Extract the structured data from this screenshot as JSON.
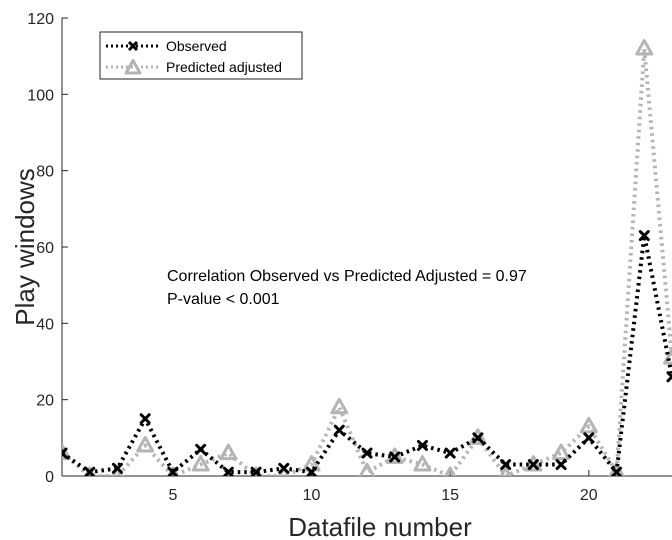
{
  "chart_data": {
    "type": "line",
    "title": "",
    "xlabel": "Datafile number",
    "ylabel": "Play windows",
    "xlim": [
      1,
      23
    ],
    "ylim": [
      0,
      120
    ],
    "x_ticks": [
      5,
      10,
      15,
      20
    ],
    "y_ticks": [
      0,
      20,
      40,
      60,
      80,
      100,
      120
    ],
    "grid": false,
    "legend_position": "top-left",
    "x": [
      1,
      2,
      3,
      4,
      5,
      6,
      7,
      8,
      9,
      10,
      11,
      12,
      13,
      14,
      15,
      16,
      17,
      18,
      19,
      20,
      21,
      22,
      23
    ],
    "series": [
      {
        "name": "Predicted adjusted",
        "color": "#b4b4b4",
        "marker": "triangle",
        "line": "dotted",
        "values": [
          6,
          0,
          0,
          8,
          0,
          3,
          6,
          0,
          0,
          3,
          18,
          1,
          5,
          3,
          0,
          10,
          0,
          3,
          6,
          13,
          1,
          112,
          31
        ]
      },
      {
        "name": "Observed",
        "color": "#000000",
        "marker": "x",
        "line": "dotted",
        "values": [
          6,
          1,
          2,
          15,
          1,
          7,
          1,
          1,
          2,
          1,
          12,
          6,
          5,
          8,
          6,
          10,
          3,
          3,
          3,
          10,
          1,
          63,
          26
        ]
      }
    ],
    "annotations": [
      "Correlation Observed vs Predicted Adjusted = 0.97",
      "P-value < 0.001"
    ]
  }
}
